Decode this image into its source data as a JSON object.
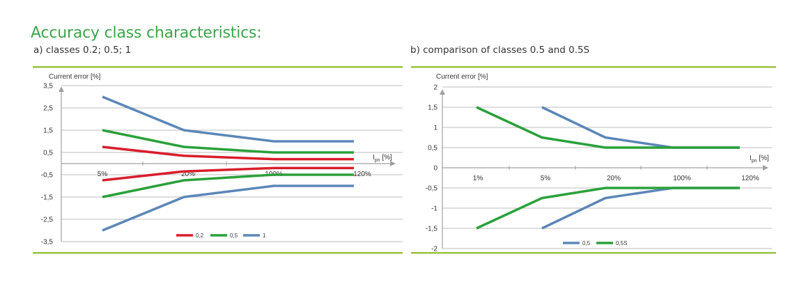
{
  "header": {
    "title": "Accuracy class characteristics:",
    "subtitle_a": "a) classes 0.2; 0.5; 1",
    "subtitle_b": "b) comparison of classes 0.5 and 0.5S"
  },
  "colors": {
    "red": "#d81e2c",
    "green": "#2aa13a",
    "blue": "#5b87b8",
    "title_green": "#3aa54a",
    "separator": "#9ac23c",
    "grid": "#bdbdbd",
    "axis": "#a0a0a0"
  },
  "chart_data": [
    {
      "type": "line",
      "title": "a) classes 0.2; 0.5; 1",
      "ylabel": "Current error [%]",
      "xlabel_main": "I",
      "xlabel_sub": "pn",
      "xlabel_unit": "[%]",
      "ylim": [
        -3.5,
        3.5
      ],
      "yticks": [
        3.5,
        2.5,
        1.5,
        0.5,
        -0.5,
        -1.5,
        -2.5,
        -3.5
      ],
      "ytick_labels": [
        "3,5",
        "2,5",
        "1,5",
        "0,5",
        "-0,5",
        "-1,5",
        "-2,5",
        "-3,5"
      ],
      "categories": [
        "5%",
        "20%",
        "100%",
        "120%"
      ],
      "legend": [
        "0,2",
        "0,5",
        "1"
      ],
      "series": [
        {
          "name": "0,2",
          "color": "red",
          "values": [
            0.75,
            0.35,
            0.2,
            0.2
          ]
        },
        {
          "name": "0,2",
          "color": "red",
          "values": [
            -0.75,
            -0.35,
            -0.2,
            -0.2
          ]
        },
        {
          "name": "0,5",
          "color": "green",
          "values": [
            1.5,
            0.75,
            0.5,
            0.5
          ]
        },
        {
          "name": "0,5",
          "color": "green",
          "values": [
            -1.5,
            -0.75,
            -0.5,
            -0.5
          ]
        },
        {
          "name": "1",
          "color": "blue",
          "values": [
            3.0,
            1.5,
            1.0,
            1.0
          ]
        },
        {
          "name": "1",
          "color": "blue",
          "values": [
            -3.0,
            -1.5,
            -1.0,
            -1.0
          ]
        }
      ]
    },
    {
      "type": "line",
      "title": "b) comparison of classes 0.5 and 0.5S",
      "ylabel": "Current error [%]",
      "xlabel_main": "I",
      "xlabel_sub": "pn",
      "xlabel_unit": "[%]",
      "ylim": [
        -2,
        2
      ],
      "yticks": [
        2,
        1.5,
        1,
        0.5,
        0,
        -0.5,
        -1,
        -1.5,
        -2
      ],
      "ytick_labels": [
        "2",
        "1,5",
        "1",
        "0,5",
        "0",
        "-0,5",
        "-1",
        "-1,5",
        "-2"
      ],
      "categories": [
        "1%",
        "5%",
        "20%",
        "100%",
        "120%"
      ],
      "legend": [
        "0,5",
        "0,5S"
      ],
      "series": [
        {
          "name": "0,5",
          "color": "blue",
          "x": [
            1,
            2,
            3,
            4
          ],
          "values": [
            1.5,
            0.75,
            0.5,
            0.5
          ]
        },
        {
          "name": "0,5",
          "color": "blue",
          "x": [
            1,
            2,
            3,
            4
          ],
          "values": [
            -1.5,
            -0.75,
            -0.5,
            -0.5
          ]
        },
        {
          "name": "0,5S",
          "color": "green",
          "x": [
            0,
            1,
            2,
            3,
            4
          ],
          "values": [
            1.5,
            0.75,
            0.5,
            0.5,
            0.5
          ]
        },
        {
          "name": "0,5S",
          "color": "green",
          "x": [
            0,
            1,
            2,
            3,
            4
          ],
          "values": [
            -1.5,
            -0.75,
            -0.5,
            -0.5,
            -0.5
          ]
        }
      ]
    }
  ]
}
